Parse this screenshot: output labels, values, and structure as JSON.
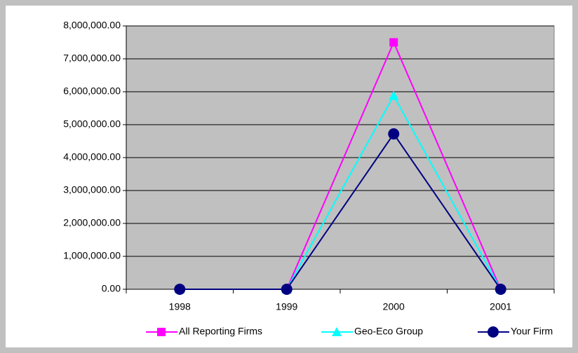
{
  "chart_data": {
    "type": "line",
    "categories": [
      "1998",
      "1999",
      "2000",
      "2001"
    ],
    "series": [
      {
        "name": "All Reporting Firms",
        "color": "#ff00ff",
        "marker": "square",
        "values": [
          0,
          0,
          7500000,
          0
        ]
      },
      {
        "name": "Geo-Eco Group",
        "color": "#00ffff",
        "marker": "triangle",
        "values": [
          0,
          0,
          5880000,
          0
        ]
      },
      {
        "name": "Your Firm",
        "color": "#000080",
        "marker": "circle",
        "values": [
          0,
          0,
          4720000,
          0
        ]
      }
    ],
    "ylim": [
      0,
      8000000
    ],
    "yticks": [
      {
        "value": 0,
        "label": "0.00"
      },
      {
        "value": 1000000,
        "label": "1,000,000.00"
      },
      {
        "value": 2000000,
        "label": "2,000,000.00"
      },
      {
        "value": 3000000,
        "label": "3,000,000.00"
      },
      {
        "value": 4000000,
        "label": "4,000,000.00"
      },
      {
        "value": 5000000,
        "label": "5,000,000.00"
      },
      {
        "value": 6000000,
        "label": "6,000,000.00"
      },
      {
        "value": 7000000,
        "label": "7,000,000.00"
      },
      {
        "value": 8000000,
        "label": "8,000,000.00"
      }
    ],
    "grid": true,
    "legend": "bottom",
    "plot_color": "#c0c0c0"
  }
}
